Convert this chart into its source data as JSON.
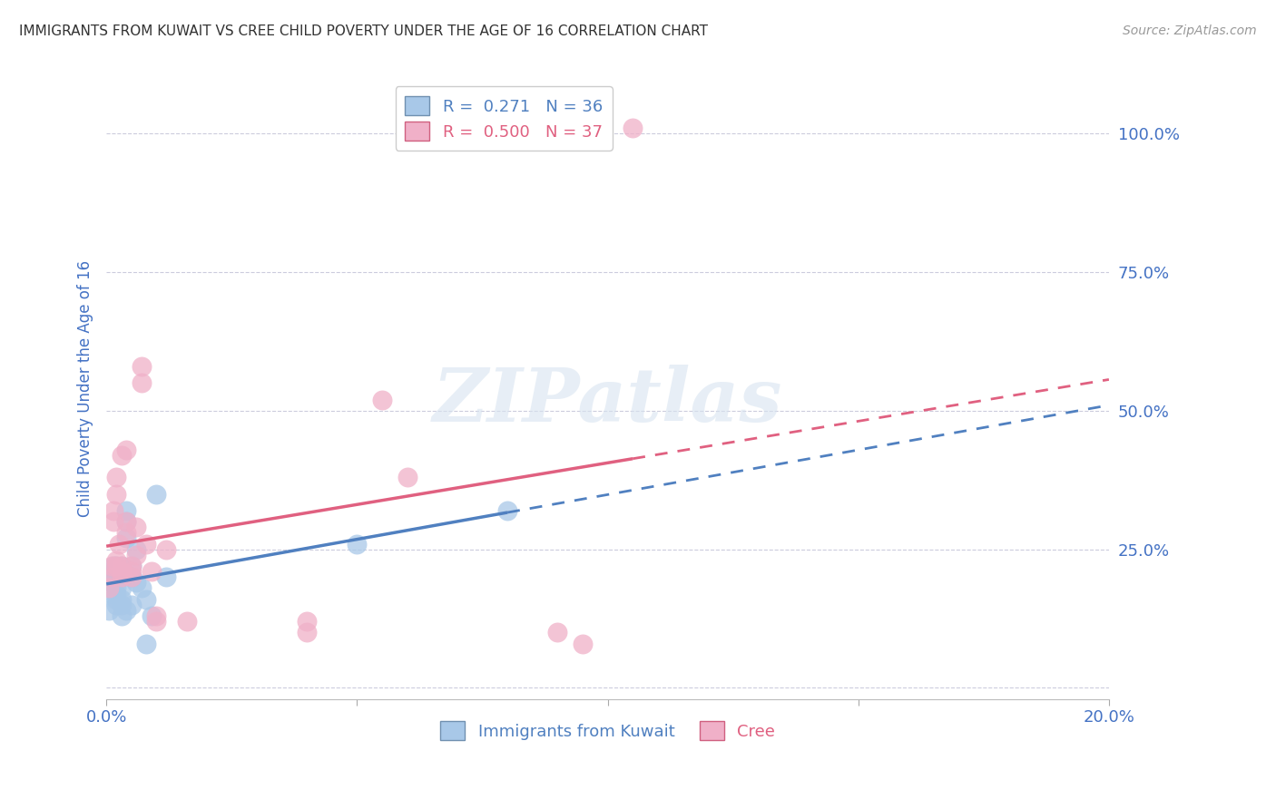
{
  "title": "IMMIGRANTS FROM KUWAIT VS CREE CHILD POVERTY UNDER THE AGE OF 16 CORRELATION CHART",
  "source": "Source: ZipAtlas.com",
  "ylabel": "Child Poverty Under the Age of 16",
  "xlim": [
    0.0,
    0.2
  ],
  "ylim": [
    -0.02,
    1.1
  ],
  "yticks": [
    0.0,
    0.25,
    0.5,
    0.75,
    1.0
  ],
  "ytick_labels": [
    "",
    "25.0%",
    "50.0%",
    "75.0%",
    "100.0%"
  ],
  "xticks": [
    0.0,
    0.05,
    0.1,
    0.15,
    0.2
  ],
  "xtick_labels": [
    "0.0%",
    "",
    "",
    "",
    "20.0%"
  ],
  "blue": {
    "name": "Immigrants from Kuwait",
    "R": 0.271,
    "N": 36,
    "scatter_color": "#a8c8e8",
    "line_color": "#5080c0",
    "x": [
      0.0005,
      0.001,
      0.001,
      0.0015,
      0.0015,
      0.0015,
      0.002,
      0.002,
      0.002,
      0.002,
      0.002,
      0.002,
      0.0025,
      0.003,
      0.003,
      0.003,
      0.003,
      0.003,
      0.003,
      0.004,
      0.004,
      0.004,
      0.004,
      0.005,
      0.005,
      0.005,
      0.006,
      0.006,
      0.007,
      0.008,
      0.008,
      0.009,
      0.01,
      0.012,
      0.05,
      0.08
    ],
    "y": [
      0.14,
      0.19,
      0.2,
      0.21,
      0.22,
      0.17,
      0.15,
      0.16,
      0.17,
      0.18,
      0.2,
      0.22,
      0.21,
      0.16,
      0.18,
      0.2,
      0.22,
      0.13,
      0.15,
      0.3,
      0.27,
      0.32,
      0.14,
      0.22,
      0.2,
      0.15,
      0.25,
      0.19,
      0.18,
      0.16,
      0.08,
      0.13,
      0.35,
      0.2,
      0.26,
      0.32
    ]
  },
  "pink": {
    "name": "Cree",
    "R": 0.5,
    "N": 37,
    "scatter_color": "#f0b0c8",
    "line_color": "#e06080",
    "x": [
      0.0005,
      0.001,
      0.001,
      0.0015,
      0.0015,
      0.002,
      0.002,
      0.002,
      0.002,
      0.0025,
      0.003,
      0.003,
      0.003,
      0.003,
      0.004,
      0.004,
      0.004,
      0.005,
      0.005,
      0.005,
      0.006,
      0.006,
      0.007,
      0.007,
      0.008,
      0.009,
      0.01,
      0.01,
      0.012,
      0.016,
      0.04,
      0.04,
      0.055,
      0.06,
      0.09,
      0.095,
      0.105
    ],
    "y": [
      0.18,
      0.2,
      0.22,
      0.3,
      0.32,
      0.23,
      0.22,
      0.35,
      0.38,
      0.26,
      0.22,
      0.21,
      0.2,
      0.42,
      0.43,
      0.3,
      0.28,
      0.2,
      0.21,
      0.22,
      0.29,
      0.24,
      0.55,
      0.58,
      0.26,
      0.21,
      0.13,
      0.12,
      0.25,
      0.12,
      0.1,
      0.12,
      0.52,
      0.38,
      0.1,
      0.08,
      1.01
    ]
  },
  "watermark_text": "ZIPatlas",
  "background_color": "#ffffff",
  "title_fontsize": 11,
  "axis_label_color": "#4472c4",
  "grid_color": "#ccccdd"
}
